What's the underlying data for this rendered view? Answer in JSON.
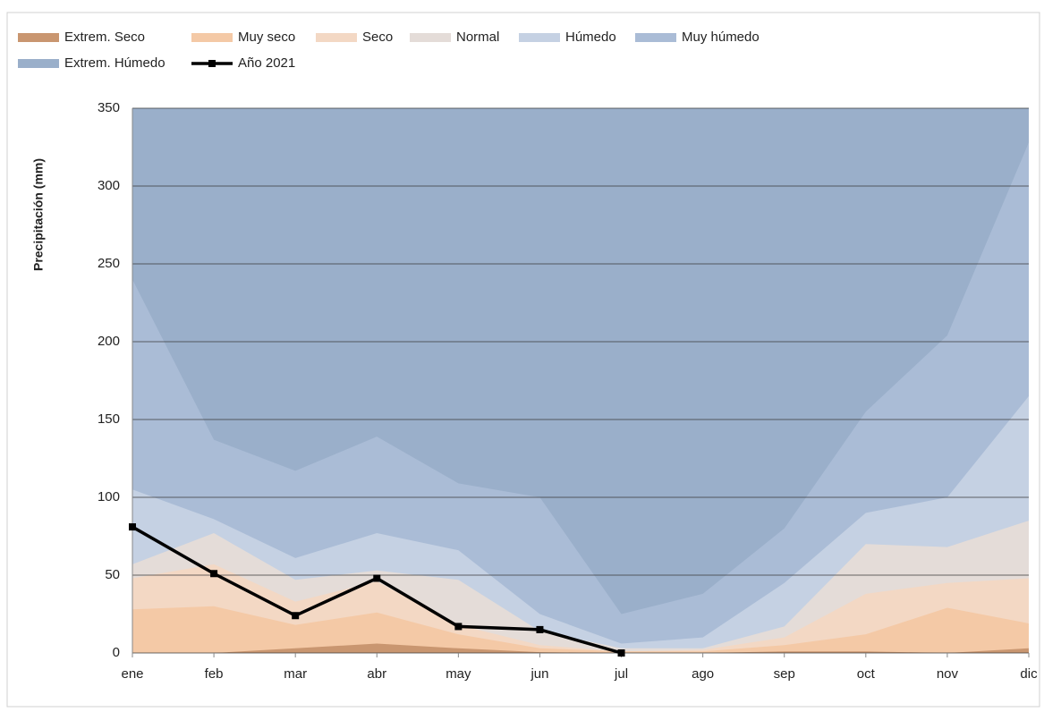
{
  "chart_data": {
    "type": "area",
    "y_label": "Precipitación (mm)",
    "categories": [
      "ene",
      "feb",
      "mar",
      "abr",
      "may",
      "jun",
      "jul",
      "ago",
      "sep",
      "oct",
      "nov",
      "dic"
    ],
    "ylim": [
      0,
      350
    ],
    "yticks": [
      0,
      50,
      100,
      150,
      200,
      250,
      300,
      350
    ],
    "grid": true,
    "series": [
      {
        "name": "Extrem. Seco",
        "color": "#c99670",
        "values": [
          0,
          0,
          3,
          6,
          3,
          0.5,
          0,
          0,
          1,
          1,
          0,
          3
        ]
      },
      {
        "name": "Muy seco",
        "color": "#f4c9a6",
        "values": [
          28,
          30,
          18,
          26,
          12,
          3,
          1,
          1,
          5,
          12,
          29,
          19
        ]
      },
      {
        "name": "Seco",
        "color": "#f3d8c4",
        "values": [
          48,
          57,
          33,
          46,
          18,
          5,
          1,
          2,
          10,
          38,
          45,
          48
        ]
      },
      {
        "name": "Normal",
        "color": "#e4dcd8",
        "values": [
          57,
          77,
          47,
          53,
          47,
          14,
          3,
          3,
          17,
          70,
          68,
          85
        ]
      },
      {
        "name": "Húmedo",
        "color": "#c5d1e3",
        "values": [
          105,
          86,
          61,
          77,
          66,
          25,
          6,
          10,
          45,
          90,
          100,
          165
        ]
      },
      {
        "name": "Muy húmedo",
        "color": "#aabcd6",
        "values": [
          240,
          137,
          117,
          139,
          109,
          100,
          25,
          38,
          80,
          155,
          204,
          328
        ]
      },
      {
        "name": "Extrem. Húmedo",
        "color": "#9aafca",
        "values": [
          350,
          350,
          350,
          350,
          350,
          350,
          350,
          350,
          350,
          350,
          350,
          350
        ]
      },
      {
        "name": "Año 2021",
        "type": "line",
        "color": "#000000",
        "values": [
          81,
          51,
          24,
          48,
          17,
          15,
          0,
          null,
          null,
          null,
          null,
          null
        ]
      }
    ]
  }
}
